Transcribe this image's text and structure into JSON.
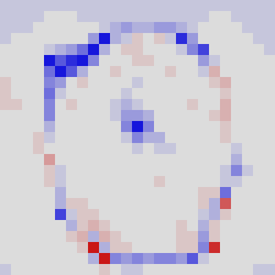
{
  "chart_data": {
    "type": "heatmap",
    "vlim": [
      -10,
      10
    ],
    "colors": {
      "negative": "#0000dc",
      "neutral": "#dcdcdc",
      "positive": "#c80000"
    },
    "values": [
      [
        -1,
        -1,
        -1,
        -1,
        -1,
        -1,
        -1,
        -1,
        -1,
        -1,
        -1,
        -1,
        -1,
        -1,
        -1,
        -1,
        -1,
        -1,
        -1,
        -1,
        -1,
        -1,
        -1,
        -1,
        -1
      ],
      [
        -1,
        -1,
        -1,
        -1,
        0,
        0,
        0,
        -1,
        -1,
        -1,
        -1,
        -1,
        -1,
        -1,
        -1,
        -1,
        -1,
        -1,
        -1,
        0,
        0,
        -1,
        -1,
        -1,
        -1
      ],
      [
        -1,
        -1,
        -1,
        0,
        0,
        0,
        0,
        0,
        0,
        -1,
        -2,
        -3,
        -2,
        -2,
        -3,
        -3,
        -2,
        -1,
        0,
        0,
        0,
        0,
        -1,
        -1,
        -1
      ],
      [
        -1,
        0,
        0,
        0,
        0,
        0,
        0,
        0,
        -3,
        -9,
        -2,
        -1,
        1,
        0,
        1,
        -1,
        -8,
        -3,
        0,
        0,
        0,
        0,
        0,
        -1,
        -1
      ],
      [
        0,
        0,
        0,
        0,
        -1,
        -2,
        -3,
        -5,
        -9,
        -2,
        0,
        1,
        1,
        0,
        0,
        0,
        -1,
        -4,
        -7,
        0,
        0,
        0,
        0,
        0,
        -1
      ],
      [
        0,
        0,
        0,
        0,
        -9,
        -6,
        -8,
        -9,
        -4,
        0,
        0,
        0,
        1,
        1,
        0,
        0,
        0,
        0,
        -3,
        -1,
        0,
        0,
        0,
        0,
        0
      ],
      [
        0,
        0,
        0,
        0,
        -5,
        -9,
        -6,
        -2,
        0,
        0,
        1,
        0,
        0,
        0,
        0,
        1,
        0,
        0,
        -1,
        2,
        0,
        0,
        0,
        0,
        0
      ],
      [
        1,
        0,
        0,
        0,
        -4,
        -3,
        0,
        1,
        0,
        0,
        0,
        0,
        -1,
        0,
        0,
        0,
        0,
        0,
        0,
        1,
        2,
        0,
        0,
        0,
        0
      ],
      [
        1,
        0,
        0,
        0,
        -5,
        -1,
        0,
        0,
        0,
        0,
        0,
        -1,
        0,
        0,
        0,
        0,
        0,
        0,
        0,
        0,
        1,
        0,
        0,
        0,
        0
      ],
      [
        1,
        1,
        0,
        0,
        -4,
        0,
        1,
        0,
        0,
        0,
        -1,
        -2,
        -1,
        0,
        0,
        0,
        0,
        1,
        0,
        0,
        2,
        0,
        0,
        0,
        0
      ],
      [
        0,
        0,
        0,
        0,
        -4,
        0,
        0,
        0,
        0,
        0,
        -1,
        -3,
        -3,
        -2,
        0,
        0,
        0,
        0,
        0,
        1,
        2,
        0,
        0,
        0,
        0
      ],
      [
        0,
        0,
        0,
        0,
        -2,
        0,
        0,
        0,
        0,
        0,
        0,
        -4,
        -9,
        -4,
        0,
        0,
        0,
        0,
        0,
        0,
        1,
        0,
        0,
        0,
        0
      ],
      [
        0,
        0,
        0,
        1,
        -1,
        0,
        0,
        0,
        0,
        0,
        0,
        -1,
        -4,
        -2,
        -2,
        0,
        0,
        0,
        0,
        0,
        1,
        0,
        0,
        0,
        0
      ],
      [
        0,
        0,
        0,
        1,
        0,
        0,
        0,
        0,
        0,
        0,
        0,
        0,
        -1,
        0,
        -1,
        -1,
        0,
        0,
        0,
        0,
        0,
        -1,
        0,
        0,
        0
      ],
      [
        0,
        0,
        0,
        0,
        3,
        0,
        0,
        0,
        0,
        0,
        0,
        0,
        0,
        0,
        0,
        0,
        0,
        0,
        0,
        0,
        0,
        -2,
        0,
        0,
        0
      ],
      [
        0,
        0,
        0,
        0,
        1,
        -1,
        0,
        0,
        0,
        0,
        0,
        0,
        0,
        0,
        0,
        0,
        0,
        0,
        0,
        0,
        -1,
        -4,
        -1,
        0,
        0
      ],
      [
        0,
        0,
        0,
        0,
        1,
        -1,
        0,
        0,
        0,
        0,
        0,
        0,
        0,
        0,
        1,
        0,
        0,
        0,
        0,
        0,
        -1,
        -1,
        0,
        0,
        0
      ],
      [
        0,
        0,
        0,
        0,
        0,
        -2,
        0,
        0,
        0,
        0,
        0,
        0,
        0,
        0,
        0,
        0,
        0,
        0,
        1,
        1,
        -5,
        0,
        0,
        0,
        0
      ],
      [
        0,
        0,
        0,
        0,
        0,
        -2,
        1,
        1,
        0,
        0,
        0,
        0,
        0,
        0,
        0,
        0,
        0,
        0,
        1,
        -2,
        6,
        0,
        0,
        0,
        0
      ],
      [
        0,
        0,
        0,
        0,
        0,
        -7,
        -1,
        1,
        1,
        0,
        0,
        0,
        0,
        0,
        0,
        0,
        0,
        0,
        -1,
        -2,
        1,
        0,
        0,
        0,
        0
      ],
      [
        0,
        0,
        0,
        0,
        0,
        0,
        -2,
        1,
        2,
        1,
        0,
        0,
        0,
        0,
        0,
        0,
        1,
        0,
        -2,
        1,
        0,
        0,
        0,
        0,
        0
      ],
      [
        0,
        0,
        0,
        0,
        0,
        0,
        1,
        2,
        -2,
        2,
        1,
        0,
        0,
        0,
        0,
        0,
        1,
        1,
        -3,
        1,
        0,
        0,
        0,
        0,
        0
      ],
      [
        0,
        0,
        0,
        0,
        0,
        0,
        0,
        1,
        9,
        -2,
        1,
        1,
        0,
        0,
        0,
        0,
        1,
        1,
        -4,
        8,
        0,
        0,
        0,
        0,
        0
      ],
      [
        0,
        0,
        0,
        0,
        0,
        0,
        0,
        0,
        -2,
        9,
        -4,
        -3,
        -4,
        -3,
        -4,
        -4,
        -3,
        -6,
        -1,
        0,
        0,
        0,
        0,
        0,
        0
      ],
      [
        -1,
        0,
        0,
        0,
        0,
        0,
        0,
        0,
        0,
        1,
        0,
        -1,
        -1,
        0,
        0,
        0,
        0,
        0,
        0,
        0,
        0,
        0,
        0,
        -1,
        -1
      ]
    ]
  }
}
